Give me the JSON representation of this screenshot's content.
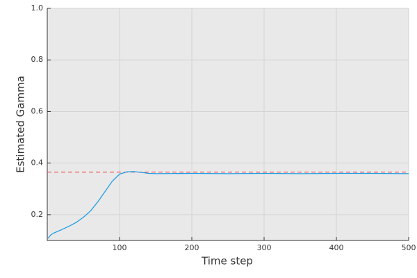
{
  "chart_data": {
    "type": "line",
    "x_label": "Time step",
    "y_label": "Estimated Gamma",
    "x": [
      1,
      5,
      10,
      20,
      30,
      40,
      50,
      60,
      70,
      80,
      90,
      100,
      110,
      120,
      130,
      140,
      150,
      200,
      250,
      300,
      350,
      400,
      450,
      500
    ],
    "series": [
      {
        "color": "#1f9ee6",
        "values": [
          0.108,
          0.122,
          0.13,
          0.142,
          0.155,
          0.17,
          0.19,
          0.215,
          0.25,
          0.29,
          0.33,
          0.357,
          0.366,
          0.367,
          0.364,
          0.36,
          0.359,
          0.36,
          0.359,
          0.36,
          0.359,
          0.36,
          0.36,
          0.359
        ]
      }
    ],
    "reference_line": {
      "value": 0.365,
      "color": "#e8585a",
      "dashed": true
    },
    "xlim": [
      0,
      500
    ],
    "xticks": [
      100,
      200,
      300,
      400,
      500
    ],
    "ylim": [
      0.1,
      1.0
    ],
    "yticks": [
      0.2,
      0.4,
      0.6,
      0.8,
      {
        "value": 1.0,
        "label": "1.0"
      }
    ],
    "grid": true,
    "background": "#e9e9e9"
  }
}
